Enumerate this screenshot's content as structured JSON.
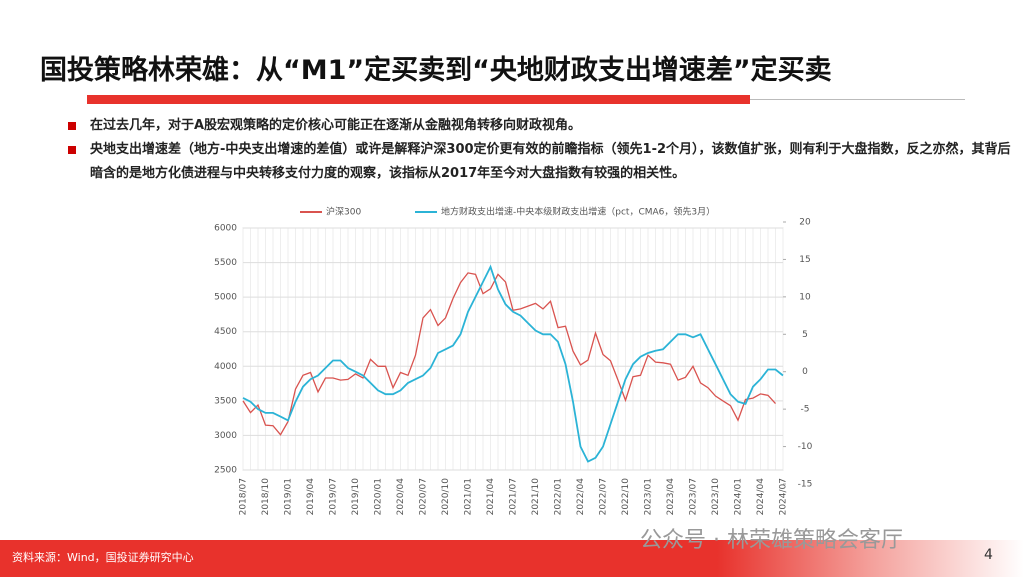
{
  "title": "国投策略林荣雄：从“M1”定买卖到“央地财政支出增速差”定买卖",
  "bullets": [
    "在过去几年，对于A股宏观策略的定价核心可能正在逐渐从金融视角转移向财政视角。",
    "央地支出增速差（地方-中央支出增速的差值）或许是解释沪深300定价更有效的前瞻指标（领先1-2个月），该数值扩张，则有利于大盘指数，反之亦然，其背后暗含的是地方化债进程与中央转移支付力度的观察，该指标从2017年至今对大盘指数有较强的相关性。"
  ],
  "source": "资料来源：Wind，国投证券研究中心",
  "watermark": "公众号 · 林荣雄策略会客厅",
  "page_number": "4",
  "chart_data": {
    "type": "line",
    "categories": [
      "2018/07",
      null,
      null,
      "2018/10",
      null,
      null,
      "2019/01",
      null,
      null,
      "2019/04",
      null,
      null,
      "2019/07",
      null,
      null,
      "2019/10",
      null,
      null,
      "2020/01",
      null,
      null,
      "2020/04",
      null,
      null,
      "2020/07",
      null,
      null,
      "2020/10",
      null,
      null,
      "2021/01",
      null,
      null,
      "2021/04",
      null,
      null,
      "2021/07",
      null,
      null,
      "2021/10",
      null,
      null,
      "2022/01",
      null,
      null,
      "2022/04",
      null,
      null,
      "2022/07",
      null,
      null,
      "2022/10",
      null,
      null,
      "2023/01",
      null,
      null,
      "2023/04",
      null,
      null,
      "2023/07",
      null,
      null,
      "2023/10",
      null,
      null,
      "2024/01",
      null,
      null,
      "2024/04",
      null,
      null,
      "2024/07"
    ],
    "series": [
      {
        "name": "沪深300",
        "color": "#d9534f",
        "axis": "y",
        "values": [
          3500,
          3330,
          3440,
          3150,
          3140,
          3010,
          3200,
          3670,
          3870,
          3910,
          3630,
          3830,
          3830,
          3800,
          3810,
          3890,
          3830,
          4100,
          4000,
          4000,
          3690,
          3910,
          3870,
          4160,
          4700,
          4820,
          4590,
          4700,
          4980,
          5210,
          5350,
          5330,
          5050,
          5120,
          5330,
          5220,
          4810,
          4830,
          4870,
          4910,
          4830,
          4940,
          4560,
          4580,
          4220,
          4020,
          4090,
          4480,
          4170,
          4080,
          3800,
          3510,
          3850,
          3870,
          4160,
          4060,
          4050,
          4030,
          3800,
          3840,
          4000,
          3760,
          3690,
          3570,
          3500,
          3430,
          3220,
          3520,
          3540,
          3600,
          3580,
          3460,
          null
        ]
      },
      {
        "name": "地方财政支出增速-中央本级财政支出增速（pct，CMA6，领先3月）",
        "color": "#2bb3d6",
        "axis": "y2",
        "values": [
          -3.5,
          -4,
          -5,
          -5.5,
          -5.5,
          -6,
          -6.5,
          -4,
          -2,
          -1,
          -0.5,
          0.5,
          1.5,
          1.5,
          0.5,
          0,
          -0.5,
          -1.5,
          -2.5,
          -3,
          -3,
          -2.5,
          -1.5,
          -1,
          -0.5,
          0.5,
          2.5,
          3,
          3.5,
          5,
          8,
          10,
          12,
          14,
          11,
          9,
          8,
          7.5,
          6.5,
          5.5,
          5,
          5,
          4,
          1,
          -4,
          -10,
          -12,
          -11.5,
          -10,
          -7,
          -4,
          -1,
          1,
          2,
          2.5,
          2.8,
          3,
          4,
          5,
          5,
          4.6,
          5,
          3,
          1,
          -1,
          -3,
          -4,
          -4.3,
          -2,
          -1,
          0.3,
          0.3,
          -0.5
        ]
      }
    ],
    "ylim": [
      2500,
      6000
    ],
    "yticks": [
      2500,
      3000,
      3500,
      4000,
      4500,
      5000,
      5500,
      6000
    ],
    "y2lim": [
      -15,
      20
    ],
    "y2ticks": [
      -15,
      -10,
      -5,
      0,
      5,
      10,
      15,
      20
    ],
    "grid": true,
    "legend": "top"
  }
}
